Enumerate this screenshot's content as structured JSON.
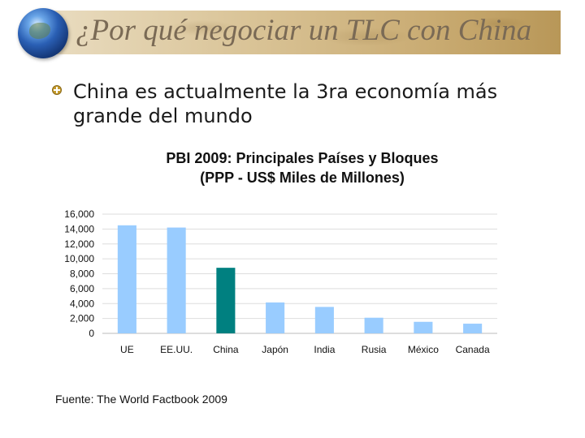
{
  "slide": {
    "title": "¿Por qué negociar un TLC con China",
    "bullet_text": "China es actualmente la 3ra economía más grande del mundo",
    "source": "Fuente: The World Factbook 2009"
  },
  "colors": {
    "bar_default": "#99ccff",
    "bar_highlight": "#008080",
    "grid": "#dddddd"
  },
  "chart_data": {
    "type": "bar",
    "title_lines": [
      "PBI 2009: Principales Países y Bloques",
      "(PPP - US$ Miles de Millones)"
    ],
    "categories": [
      "UE",
      "EE.UU.",
      "China",
      "Japón",
      "India",
      "Rusia",
      "México",
      "Canada"
    ],
    "values": [
      14500,
      14200,
      8800,
      4150,
      3550,
      2100,
      1550,
      1300
    ],
    "highlight_category": "China",
    "ylim": [
      0,
      16000
    ],
    "yticks": [
      0,
      2000,
      4000,
      6000,
      8000,
      10000,
      12000,
      14000,
      16000
    ],
    "ytick_labels": [
      "0",
      "2,000",
      "4,000",
      "6,000",
      "8,000",
      "10,000",
      "12,000",
      "14,000",
      "16,000"
    ],
    "grid": true,
    "legend": "none"
  }
}
